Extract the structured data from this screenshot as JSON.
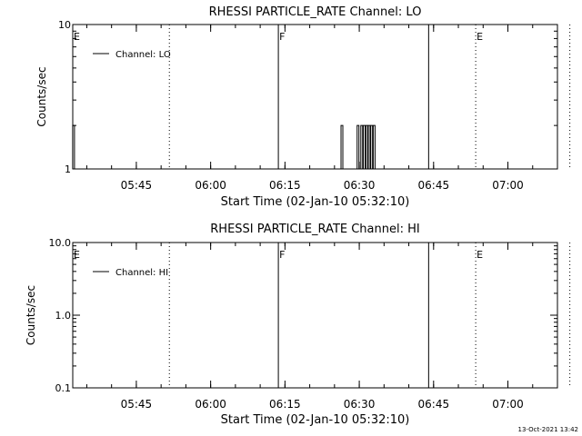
{
  "footer_timestamp": "13-Oct-2021 13:42",
  "chart_data": [
    {
      "type": "line",
      "title": "RHESSI PARTICLE_RATE Channel: LO",
      "xlabel": "Start Time (02-Jan-10 05:32:10)",
      "ylabel": "Counts/sec",
      "y_scale": "log",
      "ylim": [
        1,
        10
      ],
      "y_ticks": [
        1,
        10
      ],
      "y_tick_labels": [
        "1",
        "10"
      ],
      "xlim": [
        "05:32:10",
        "07:10:00"
      ],
      "x_ticks": [
        "05:45",
        "06:00",
        "06:15",
        "06:30",
        "06:45",
        "07:00"
      ],
      "legend": {
        "position": "top-left",
        "entries": [
          "Channel: LO"
        ]
      },
      "events": [
        {
          "label": "E",
          "time": "05:32:10",
          "style": "none"
        },
        {
          "label": "",
          "time": "05:51:40",
          "style": "dotted"
        },
        {
          "label": "F",
          "time": "06:13:40",
          "style": "solid"
        },
        {
          "label": "",
          "time": "06:44:00",
          "style": "solid"
        },
        {
          "label": "E",
          "time": "06:53:30",
          "style": "dotted"
        },
        {
          "label": "",
          "time": "07:12:30",
          "style": "dotted"
        }
      ],
      "series": [
        {
          "name": "Channel: LO",
          "spikes": [
            {
              "time": "05:32:20",
              "value": 2
            },
            {
              "time": "06:26:30",
              "value": 2
            },
            {
              "time": "06:29:45",
              "value": 2
            },
            {
              "time": "06:30:30",
              "value": 2
            },
            {
              "time": "06:31:00",
              "value": 2
            },
            {
              "time": "06:31:30",
              "value": 2
            },
            {
              "time": "06:32:00",
              "value": 2
            },
            {
              "time": "06:32:30",
              "value": 2
            },
            {
              "time": "06:33:00",
              "value": 2
            }
          ]
        }
      ]
    },
    {
      "type": "line",
      "title": "RHESSI PARTICLE_RATE Channel: HI",
      "xlabel": "Start Time (02-Jan-10 05:32:10)",
      "ylabel": "Counts/sec",
      "y_scale": "log",
      "ylim": [
        0.1,
        10
      ],
      "y_ticks": [
        0.1,
        1,
        10
      ],
      "y_tick_labels": [
        "0.1",
        "1.0",
        "10.0"
      ],
      "xlim": [
        "05:32:10",
        "07:10:00"
      ],
      "x_ticks": [
        "05:45",
        "06:00",
        "06:15",
        "06:30",
        "06:45",
        "07:00"
      ],
      "legend": {
        "position": "top-left",
        "entries": [
          "Channel: HI"
        ]
      },
      "events": [
        {
          "label": "E",
          "time": "05:32:10",
          "style": "none"
        },
        {
          "label": "",
          "time": "05:51:40",
          "style": "dotted"
        },
        {
          "label": "F",
          "time": "06:13:40",
          "style": "solid"
        },
        {
          "label": "",
          "time": "06:44:00",
          "style": "solid"
        },
        {
          "label": "E",
          "time": "06:53:30",
          "style": "dotted"
        },
        {
          "label": "",
          "time": "07:12:30",
          "style": "dotted"
        }
      ],
      "series": [
        {
          "name": "Channel: HI",
          "spikes": []
        }
      ]
    }
  ]
}
